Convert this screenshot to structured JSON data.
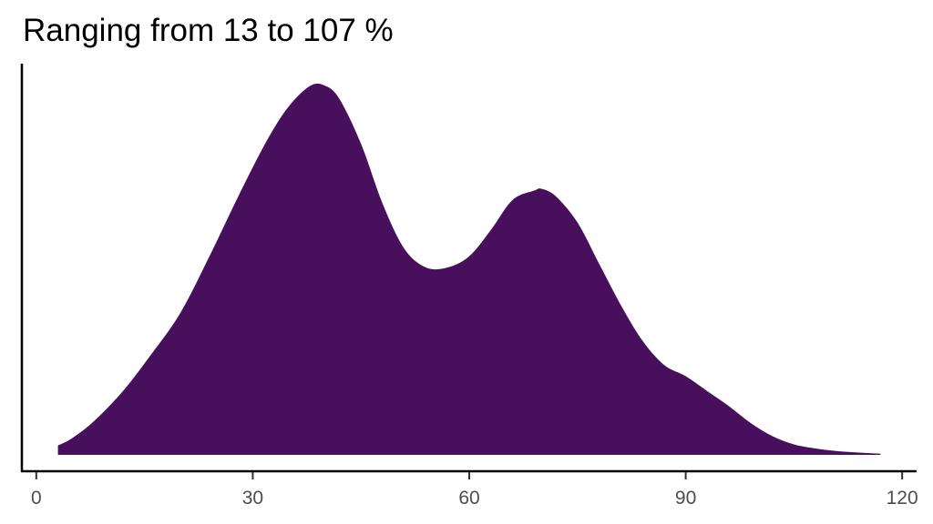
{
  "chart_data": {
    "type": "area",
    "title": "Ranging from 13 to 107 %",
    "xlabel": "",
    "ylabel": "",
    "xlim": [
      -2,
      122
    ],
    "ylim": [
      0,
      1.0
    ],
    "x_ticks": [
      0,
      30,
      60,
      90,
      120
    ],
    "x_tick_labels": [
      "0",
      "30",
      "60",
      "90",
      "120"
    ],
    "y_ticks_visible": false,
    "grid": false,
    "legend": "none",
    "fill_color": "#48105C",
    "series": [
      {
        "x": [
          3,
          5,
          8,
          12,
          16,
          20,
          24,
          28,
          32,
          35,
          38,
          40,
          42,
          45,
          48,
          51,
          54,
          57,
          60,
          63,
          66,
          69,
          70,
          72,
          75,
          78,
          81,
          84,
          87,
          90,
          93,
          96,
          99,
          102,
          105,
          108,
          111,
          114,
          117
        ],
        "y": [
          0.025,
          0.045,
          0.09,
          0.17,
          0.27,
          0.38,
          0.53,
          0.69,
          0.84,
          0.93,
          0.985,
          0.985,
          0.95,
          0.83,
          0.67,
          0.55,
          0.5,
          0.5,
          0.53,
          0.6,
          0.68,
          0.705,
          0.71,
          0.69,
          0.62,
          0.51,
          0.4,
          0.305,
          0.24,
          0.21,
          0.17,
          0.13,
          0.085,
          0.05,
          0.028,
          0.017,
          0.01,
          0.006,
          0.003
        ]
      }
    ]
  }
}
